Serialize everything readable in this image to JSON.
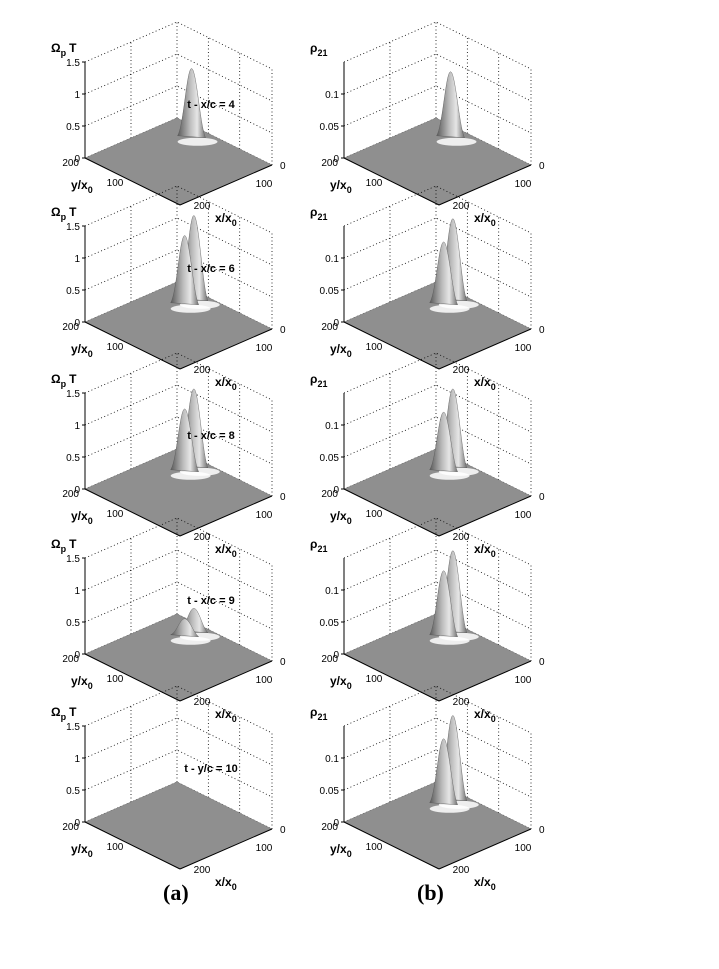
{
  "captions": [
    "(a)",
    "(b)"
  ],
  "chart_data": [
    {
      "type": "surface",
      "column": "a",
      "row": 0,
      "title": "t - x/c = 4",
      "zlabel": "Ω_p T",
      "zlim": [
        0,
        1.5
      ],
      "z_ticks": [
        "0",
        "0.5",
        "1",
        "1.5"
      ],
      "ylabel": "y/x_0",
      "xlabel": "x/x_0",
      "y_ticks": [
        "200",
        "100"
      ],
      "x_ticks": [
        "0",
        "100",
        "200"
      ],
      "peaks": [
        {
          "x": 50,
          "y": 20,
          "height": 1.05
        }
      ]
    },
    {
      "type": "surface",
      "column": "b",
      "row": 0,
      "title": "",
      "zlabel": "ρ_21",
      "zlim": [
        0,
        0.15
      ],
      "z_ticks": [
        "0",
        "0.05",
        "0.1"
      ],
      "ylabel": "y/x_0",
      "xlabel": "x/x_0",
      "y_ticks": [
        "200",
        "100"
      ],
      "x_ticks": [
        "0",
        "100",
        "200"
      ],
      "peaks": [
        {
          "x": 50,
          "y": 20,
          "height": 0.1
        }
      ]
    },
    {
      "type": "surface",
      "column": "a",
      "row": 1,
      "title": "t - x/c = 6",
      "zlabel": "Ω_p T",
      "zlim": [
        0,
        1.5
      ],
      "z_ticks": [
        "0",
        "0.5",
        "1",
        "1.5"
      ],
      "ylabel": "y/x_0",
      "xlabel": "x/x_0",
      "y_ticks": [
        "200",
        "100"
      ],
      "x_ticks": [
        "0",
        "100",
        "200"
      ],
      "peaks": [
        {
          "x": 50,
          "y": 15,
          "height": 1.3
        },
        {
          "x": 50,
          "y": 35,
          "height": 1.05
        }
      ]
    },
    {
      "type": "surface",
      "column": "b",
      "row": 1,
      "title": "",
      "zlabel": "ρ_21",
      "zlim": [
        0,
        0.15
      ],
      "z_ticks": [
        "0",
        "0.05",
        "0.1"
      ],
      "ylabel": "y/x_0",
      "xlabel": "x/x_0",
      "y_ticks": [
        "200",
        "100"
      ],
      "x_ticks": [
        "0",
        "100",
        "200"
      ],
      "peaks": [
        {
          "x": 50,
          "y": 15,
          "height": 0.125
        },
        {
          "x": 50,
          "y": 35,
          "height": 0.095
        }
      ]
    },
    {
      "type": "surface",
      "column": "a",
      "row": 2,
      "title": "t - x/c = 8",
      "zlabel": "Ω_p T",
      "zlim": [
        0,
        1.5
      ],
      "z_ticks": [
        "0",
        "0.5",
        "1",
        "1.5"
      ],
      "ylabel": "y/x_0",
      "xlabel": "x/x_0",
      "y_ticks": [
        "200",
        "100"
      ],
      "x_ticks": [
        "0",
        "100",
        "200"
      ],
      "peaks": [
        {
          "x": 50,
          "y": 15,
          "height": 1.2
        },
        {
          "x": 50,
          "y": 35,
          "height": 0.95
        }
      ]
    },
    {
      "type": "surface",
      "column": "b",
      "row": 2,
      "title": "",
      "zlabel": "ρ_21",
      "zlim": [
        0,
        0.15
      ],
      "z_ticks": [
        "0",
        "0.05",
        "0.1"
      ],
      "ylabel": "y/x_0",
      "xlabel": "x/x_0",
      "y_ticks": [
        "200",
        "100"
      ],
      "x_ticks": [
        "0",
        "100",
        "200"
      ],
      "peaks": [
        {
          "x": 50,
          "y": 15,
          "height": 0.12
        },
        {
          "x": 50,
          "y": 35,
          "height": 0.09
        }
      ]
    },
    {
      "type": "surface",
      "column": "a",
      "row": 3,
      "title": "t - x/c = 9",
      "zlabel": "Ω_p T",
      "zlim": [
        0,
        1.5
      ],
      "z_ticks": [
        "0",
        "0.5",
        "1",
        "1.5"
      ],
      "ylabel": "y/x_0",
      "xlabel": "x/x_0",
      "y_ticks": [
        "200",
        "100"
      ],
      "x_ticks": [
        "0",
        "100",
        "200"
      ],
      "peaks": [
        {
          "x": 50,
          "y": 15,
          "height": 0.35
        },
        {
          "x": 50,
          "y": 35,
          "height": 0.25
        }
      ]
    },
    {
      "type": "surface",
      "column": "b",
      "row": 3,
      "title": "",
      "zlabel": "ρ_21",
      "zlim": [
        0,
        0.15
      ],
      "z_ticks": [
        "0",
        "0.05",
        "0.1"
      ],
      "ylabel": "y/x_0",
      "xlabel": "x/x_0",
      "y_ticks": [
        "200",
        "100"
      ],
      "x_ticks": [
        "0",
        "100",
        "200"
      ],
      "peaks": [
        {
          "x": 50,
          "y": 15,
          "height": 0.125
        },
        {
          "x": 50,
          "y": 35,
          "height": 0.1
        }
      ]
    },
    {
      "type": "surface",
      "column": "a",
      "row": 4,
      "title": "t - y/c = 10",
      "zlabel": "Ω_p T",
      "zlim": [
        0,
        1.5
      ],
      "z_ticks": [
        "0",
        "0.5",
        "1",
        "1.5"
      ],
      "ylabel": "y/x_0",
      "xlabel": "x/x_0",
      "y_ticks": [
        "200",
        "100"
      ],
      "x_ticks": [
        "0",
        "100",
        "200"
      ],
      "peaks": []
    },
    {
      "type": "surface",
      "column": "b",
      "row": 4,
      "title": "",
      "zlabel": "ρ_21",
      "zlim": [
        0,
        0.15
      ],
      "z_ticks": [
        "0",
        "0.05",
        "0.1"
      ],
      "ylabel": "y/x_0",
      "xlabel": "x/x_0",
      "y_ticks": [
        "200",
        "100"
      ],
      "x_ticks": [
        "0",
        "100",
        "200"
      ],
      "peaks": [
        {
          "x": 50,
          "y": 15,
          "height": 0.13
        },
        {
          "x": 50,
          "y": 35,
          "height": 0.1
        }
      ]
    }
  ]
}
